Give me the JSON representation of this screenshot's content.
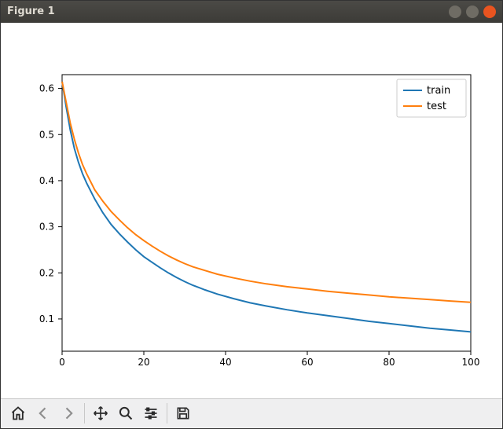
{
  "window": {
    "title": "Figure 1",
    "buttons": {
      "minimize_color": "#6f6c64",
      "maximize_color": "#6f6c64",
      "close_color": "#e95420"
    }
  },
  "toolbar": {
    "home": "home-icon",
    "back": "back-icon",
    "fwd": "forward-icon",
    "pan": "pan-icon",
    "zoom": "zoom-icon",
    "conf": "configure-icon",
    "save": "save-icon"
  },
  "chart": {
    "type": "line",
    "background_color": "#ffffff",
    "axes_color": "#000000",
    "tick_fontsize": 12,
    "line_width": 2,
    "xlim": [
      0,
      100
    ],
    "ylim": [
      0.03,
      0.63
    ],
    "xticks": [
      0,
      20,
      40,
      60,
      80,
      100
    ],
    "yticks": [
      0.1,
      0.2,
      0.3,
      0.4,
      0.5,
      0.6
    ],
    "legend": {
      "loc": "upper-right",
      "border_color": "#cccccc",
      "bg_color": "#ffffff",
      "fontsize": 13
    },
    "series": [
      {
        "label": "train",
        "color": "#1f77b4",
        "x": [
          0,
          1,
          2,
          3,
          4,
          5,
          6,
          8,
          10,
          12,
          14,
          16,
          18,
          20,
          22,
          24,
          26,
          28,
          30,
          32,
          35,
          38,
          42,
          46,
          50,
          55,
          60,
          65,
          70,
          75,
          80,
          85,
          90,
          95,
          100
        ],
        "y": [
          0.615,
          0.56,
          0.51,
          0.47,
          0.44,
          0.415,
          0.395,
          0.36,
          0.33,
          0.305,
          0.285,
          0.267,
          0.25,
          0.235,
          0.223,
          0.211,
          0.2,
          0.19,
          0.181,
          0.173,
          0.163,
          0.154,
          0.144,
          0.135,
          0.128,
          0.12,
          0.113,
          0.107,
          0.101,
          0.095,
          0.09,
          0.085,
          0.08,
          0.076,
          0.072
        ]
      },
      {
        "label": "test",
        "color": "#ff7f0e",
        "x": [
          0,
          1,
          2,
          3,
          4,
          5,
          6,
          8,
          10,
          12,
          14,
          16,
          18,
          20,
          22,
          24,
          26,
          28,
          30,
          32,
          35,
          38,
          42,
          46,
          50,
          55,
          60,
          65,
          70,
          75,
          80,
          85,
          90,
          95,
          100
        ],
        "y": [
          0.615,
          0.57,
          0.525,
          0.49,
          0.46,
          0.435,
          0.415,
          0.38,
          0.355,
          0.333,
          0.315,
          0.298,
          0.283,
          0.27,
          0.258,
          0.247,
          0.237,
          0.228,
          0.22,
          0.213,
          0.205,
          0.197,
          0.189,
          0.182,
          0.176,
          0.17,
          0.165,
          0.16,
          0.156,
          0.152,
          0.148,
          0.145,
          0.142,
          0.139,
          0.136
        ]
      }
    ]
  }
}
